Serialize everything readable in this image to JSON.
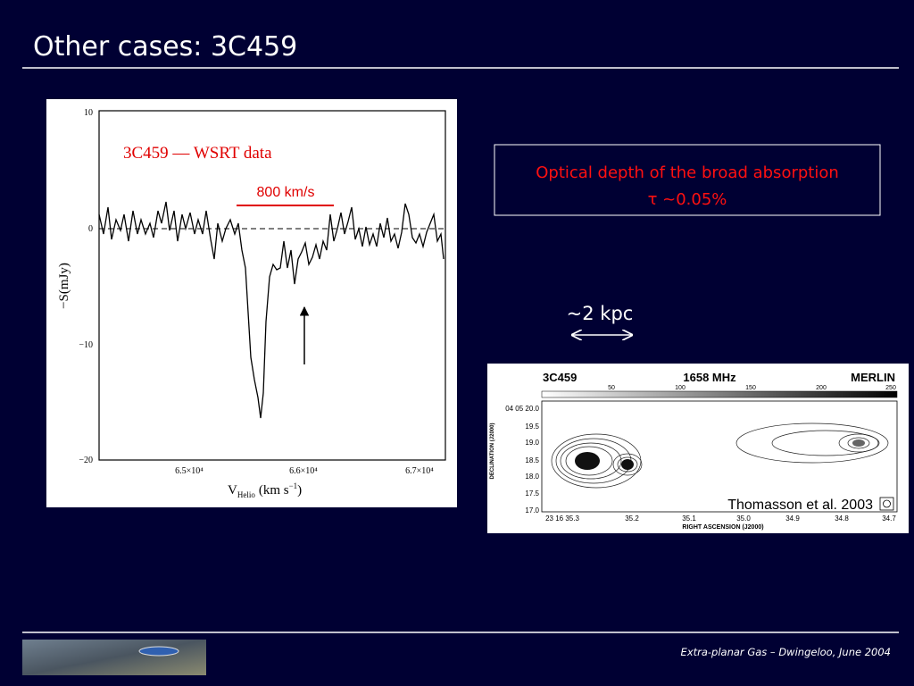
{
  "header": {
    "title": "Other cases: 3C459"
  },
  "spectrum": {
    "label": "3C459 — WSRT data",
    "width_note": "800 km/s",
    "y_axis_label": "−S(mJy)",
    "yticks": [
      "10",
      "0",
      "−10",
      "−20"
    ],
    "xticks": [
      "6.5×10⁴",
      "6.6×10⁴",
      "6.7×10⁴"
    ],
    "x_axis_label": {
      "main": "V",
      "sub": "Helio",
      "unit": "(km s",
      "sup": "−1",
      "close": ")"
    }
  },
  "note": {
    "lines": [
      "Optical depth of the broad absorption",
      "τ ~0.05%"
    ]
  },
  "scale": {
    "label": "~2 kpc"
  },
  "radio_map": {
    "source": "3C459",
    "frequency": "1658 MHz",
    "instrument": "MERLIN",
    "colorbar_ticks": [
      "50",
      "100",
      "150",
      "200",
      "250"
    ],
    "dec_ticks": [
      "04 05 20.0",
      "19.5",
      "19.0",
      "18.5",
      "18.0",
      "17.5",
      "17.0"
    ],
    "ra_ticks": [
      "23 16 35.3",
      "35.2",
      "35.1",
      "35.0",
      "34.9",
      "34.8",
      "34.7"
    ],
    "y_axis_label": "DECLINATION (J2000)",
    "x_axis_label": "RIGHT ASCENSION (J2000)",
    "credit": "Thomasson et al. 2003"
  },
  "footer": {
    "text": "Extra-planar Gas – Dwingeloo, June 2004"
  }
}
